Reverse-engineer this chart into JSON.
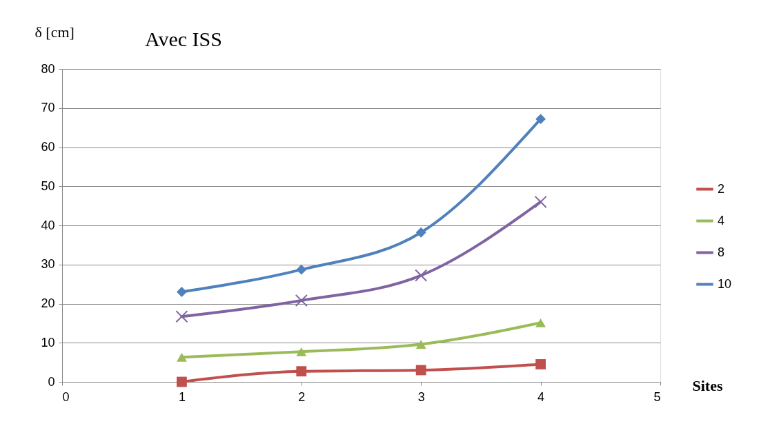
{
  "chart_data": {
    "type": "line",
    "title": "Avec ISS",
    "ylabel": "δ [cm]",
    "xlabel": "Sites",
    "x": [
      1,
      2,
      3,
      4
    ],
    "series": [
      {
        "name": "2",
        "color": "#c0504d",
        "marker": "square",
        "values": [
          0,
          2.7,
          3,
          4.5
        ]
      },
      {
        "name": "4",
        "color": "#9bbb59",
        "marker": "triangle",
        "values": [
          6.3,
          7.7,
          9.6,
          15.1
        ]
      },
      {
        "name": "8",
        "color": "#8064a2",
        "marker": "cross",
        "values": [
          16.7,
          20.8,
          27.2,
          46
        ]
      },
      {
        "name": "10",
        "color": "#4f81bd",
        "marker": "diamond",
        "values": [
          23,
          28.7,
          38.2,
          67.2
        ]
      }
    ],
    "xlim": [
      0,
      5
    ],
    "xticks": [
      0,
      1,
      2,
      3,
      4,
      5
    ],
    "ylim": [
      0,
      80
    ],
    "yticks": [
      0,
      10,
      20,
      30,
      40,
      50,
      60,
      70,
      80
    ],
    "grid": "y",
    "legend": "right",
    "line_style": "solid"
  }
}
